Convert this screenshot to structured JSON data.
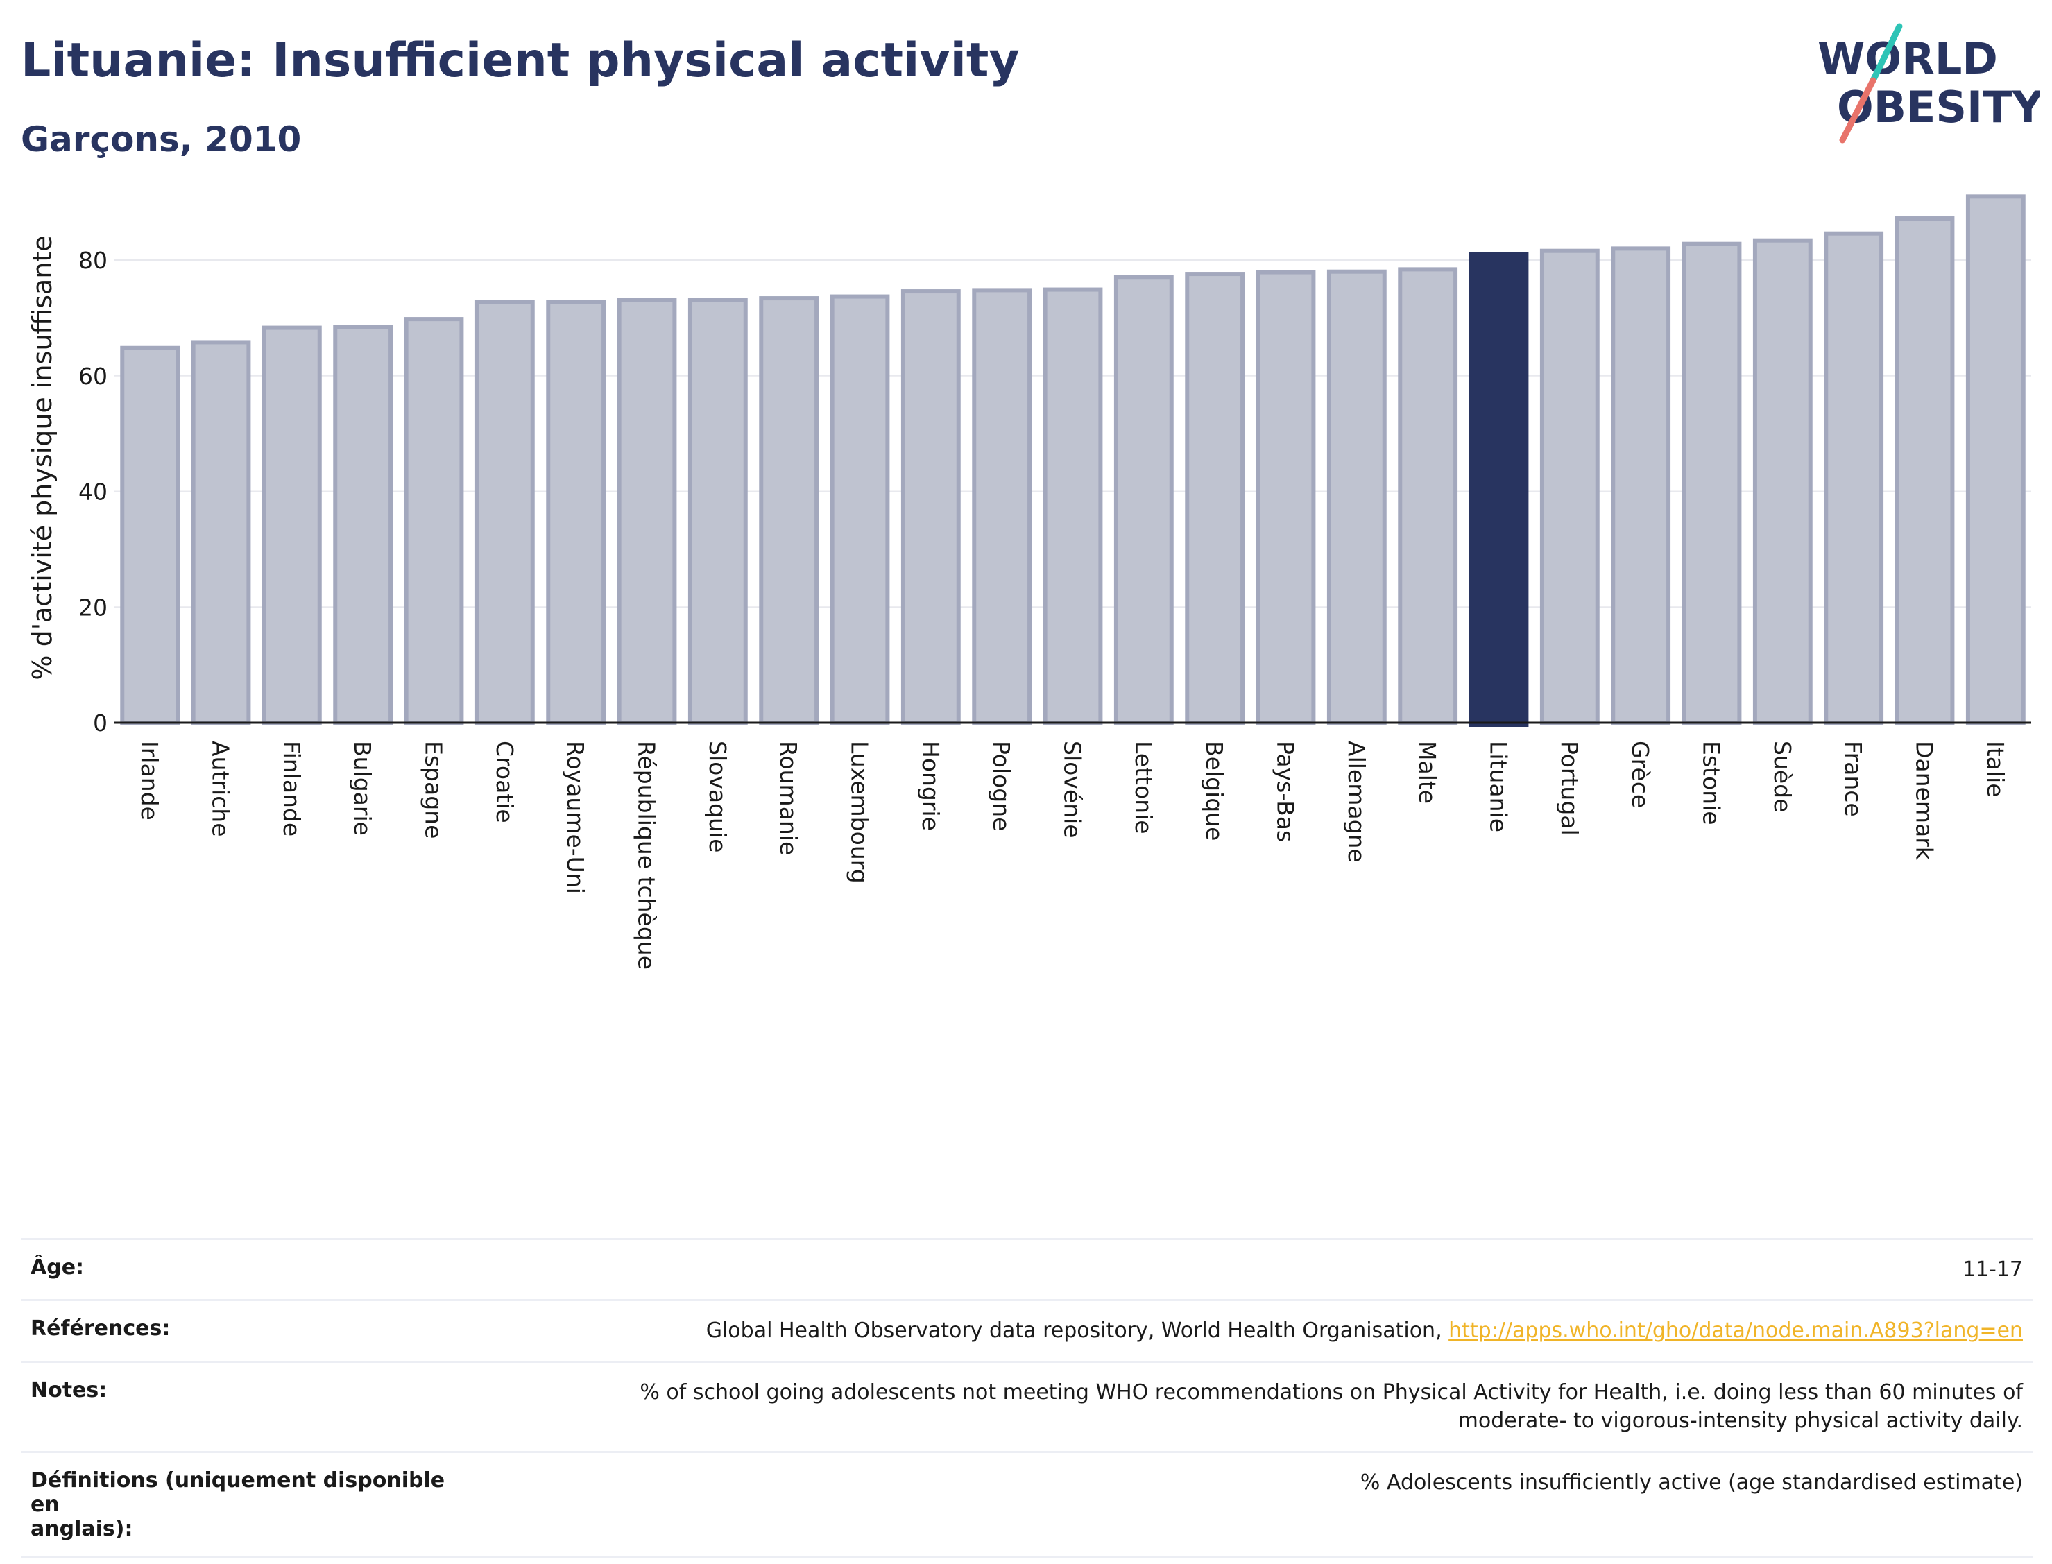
{
  "title": "Lituanie: Insufficient physical activity",
  "subtitle": "Garçons, 2010",
  "logo": {
    "line1": "WORLD",
    "line2": "OBESITY"
  },
  "colors": {
    "bar_default_fill": "#bfc3d0",
    "bar_default_stroke": "#a3a8bd",
    "bar_highlight": "#283460",
    "grid": "#e8e9ee",
    "title": "#283460",
    "link": "#f0b428",
    "logo_teal": "#2ec4b6",
    "logo_coral": "#e8736a"
  },
  "chart_data": {
    "type": "bar",
    "ylabel": "% d'activité physique insuffisante",
    "xlabel": "",
    "ylim": [
      0,
      92
    ],
    "yticks": [
      0,
      20,
      40,
      60,
      80
    ],
    "grid": true,
    "highlight": "Lituanie",
    "categories": [
      "Irlande",
      "Autriche",
      "Finlande",
      "Bulgarie",
      "Espagne",
      "Croatie",
      "Royaume-Uni",
      "République tchèque",
      "Slovaquie",
      "Roumanie",
      "Luxembourg",
      "Hongrie",
      "Pologne",
      "Slovénie",
      "Lettonie",
      "Belgique",
      "Pays-Bas",
      "Allemagne",
      "Malte",
      "Lituanie",
      "Portugal",
      "Grèce",
      "Estonie",
      "Suède",
      "France",
      "Danemark",
      "Italie"
    ],
    "values": [
      64.8,
      65.8,
      68.3,
      68.4,
      69.8,
      72.7,
      72.8,
      73.1,
      73.1,
      73.4,
      73.7,
      74.6,
      74.8,
      74.9,
      77.1,
      77.6,
      77.9,
      78.0,
      78.4,
      81.0,
      81.6,
      82.0,
      82.8,
      83.4,
      84.6,
      87.2,
      91.0
    ]
  },
  "info": {
    "age_label": "Âge:",
    "age_value": "11-17",
    "references_label": "Références:",
    "references_text": "Global Health Observatory data repository, World Health Organisation, ",
    "references_link": "http://apps.who.int/gho/data/node.main.A893?lang=en",
    "notes_label": "Notes:",
    "notes_line1": "% of school going adolescents not meeting WHO recommendations on Physical Activity for Health, i.e. doing less than 60 minutes of",
    "notes_line2": "moderate- to vigorous-intensity physical activity daily.",
    "definitions_label_line1": "Définitions (uniquement disponible en",
    "definitions_label_line2": "anglais):",
    "definitions_value": "% Adolescents insufficiently active (age standardised estimate)"
  }
}
